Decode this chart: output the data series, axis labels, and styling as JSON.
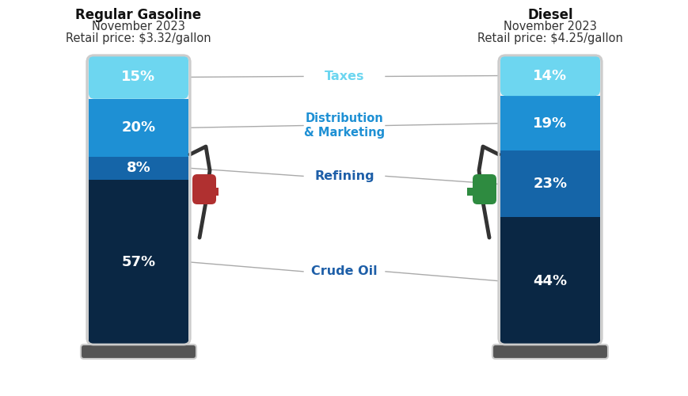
{
  "regular_title": "Regular Gasoline",
  "regular_subtitle": "November 2023",
  "regular_price": "Retail price: $3.32/gallon",
  "diesel_title": "Diesel",
  "diesel_subtitle": "November 2023",
  "diesel_price": "Retail price: $4.25/gallon",
  "regular_segments": [
    57,
    8,
    20,
    15
  ],
  "diesel_segments": [
    44,
    23,
    19,
    14
  ],
  "segment_colors": [
    "#0a2744",
    "#1565a8",
    "#1e90d4",
    "#6dd6f0"
  ],
  "bar_border_color": "#cccccc",
  "bar_bg_color": "#f0f0f0",
  "line_color": "#aaaaaa",
  "background_color": "#ffffff",
  "label_texts": [
    "Crude Oil",
    "Refining",
    "Distribution\n& Marketing",
    "Taxes"
  ],
  "label_colors": [
    "#1e5fa8",
    "#1e5fa8",
    "#1e90d4",
    "#6dd6f0"
  ]
}
